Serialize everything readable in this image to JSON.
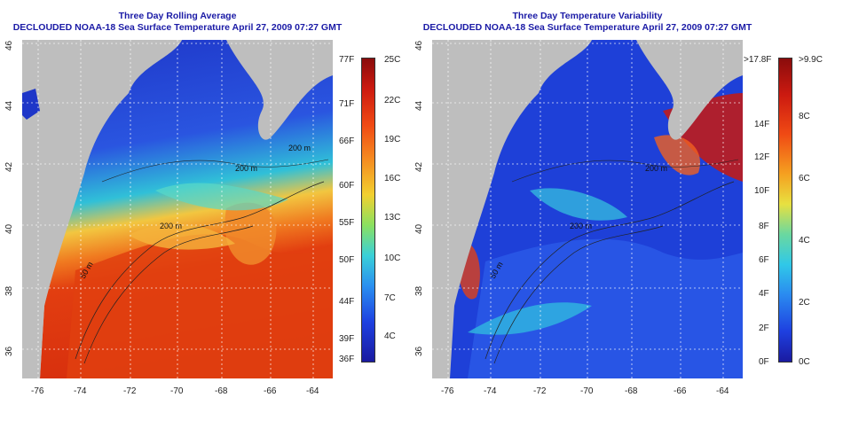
{
  "left": {
    "title_line1": "Three Day Rolling Average",
    "title_line2": "DECLOUDED NOAA-18 Sea Surface Temperature April 27, 2009 07:27 GMT",
    "f_labels": [
      "77F",
      "71F",
      "66F",
      "60F",
      "55F",
      "50F",
      "44F",
      "39F",
      "36F"
    ],
    "c_labels": [
      "25C",
      "22C",
      "19C",
      "16C",
      "13C",
      "10C",
      "7C",
      "4C"
    ],
    "contour_labels": [
      "200 m",
      "50 m",
      "200 m",
      "200 m"
    ]
  },
  "right": {
    "title_line1": "Three Day Temperature Variability",
    "title_line2": "DECLOUDED NOAA-18 Sea Surface Temperature April 27, 2009 07:27 GMT",
    "f_labels": [
      ">17.8F",
      "14F",
      "12F",
      "10F",
      "8F",
      "6F",
      "4F",
      "2F",
      "0F"
    ],
    "c_labels": [
      ">9.9C",
      "8C",
      "6C",
      "4C",
      "2C",
      "0C"
    ],
    "contour_labels": [
      "200 m",
      "50 m",
      "200 m"
    ]
  },
  "axes": {
    "lon_ticks": [
      "-76",
      "-74",
      "-72",
      "-70",
      "-68",
      "-66",
      "-64"
    ],
    "lat_ticks": [
      "46",
      "44",
      "42",
      "40",
      "38",
      "36"
    ]
  },
  "colors": {
    "title": "#1a1aa6",
    "land": "#bebebe"
  }
}
